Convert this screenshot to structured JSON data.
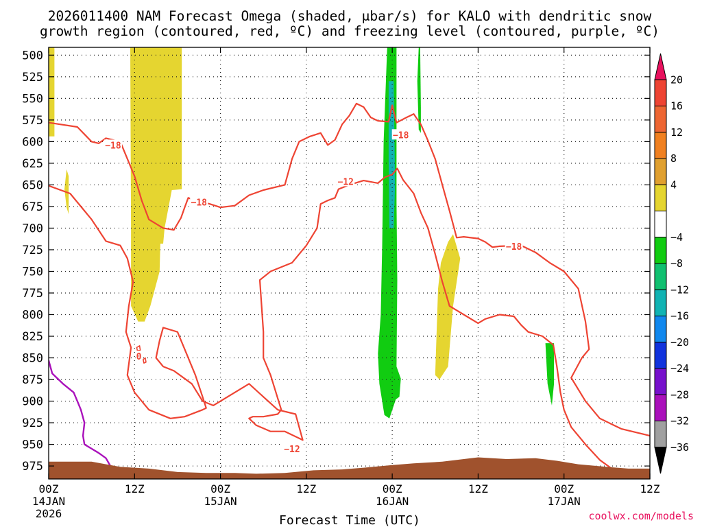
{
  "chart_data": {
    "type": "heatmap",
    "title_line1": "2026011400 NAM Forecast Omega (shaded, μbar/s) for KALO with dendritic snow",
    "title_line2": "growth region (contoured, red, ºC) and freezing level (contoured, purple, ºC)",
    "xlabel": "Forecast Time (UTC)",
    "credit": "coolwx.com/models",
    "xlim_hours": [
      0,
      84
    ],
    "y_levels": [
      500,
      525,
      550,
      575,
      600,
      625,
      650,
      675,
      700,
      725,
      750,
      775,
      800,
      825,
      850,
      875,
      900,
      925,
      950,
      975
    ],
    "ylim_hpa": [
      491,
      990
    ],
    "x_ticks": [
      {
        "hour": 0,
        "label": "00Z",
        "sub1": "14JAN",
        "sub2": "2026"
      },
      {
        "hour": 12,
        "label": "12Z",
        "sub1": "",
        "sub2": ""
      },
      {
        "hour": 24,
        "label": "00Z",
        "sub1": "15JAN",
        "sub2": ""
      },
      {
        "hour": 36,
        "label": "12Z",
        "sub1": "",
        "sub2": ""
      },
      {
        "hour": 48,
        "label": "00Z",
        "sub1": "16JAN",
        "sub2": ""
      },
      {
        "hour": 60,
        "label": "12Z",
        "sub1": "",
        "sub2": ""
      },
      {
        "hour": 72,
        "label": "00Z",
        "sub1": "17JAN",
        "sub2": ""
      },
      {
        "hour": 84,
        "label": "12Z",
        "sub1": "",
        "sub2": ""
      }
    ],
    "colorbar": {
      "labels": [
        "20",
        "16",
        "12",
        "8",
        "4",
        "−4",
        "−8",
        "−12",
        "−16",
        "−20",
        "−24",
        "−28",
        "−32",
        "−36"
      ],
      "bins": [
        {
          "color": "#e8115e",
          "shape": "triangle"
        },
        {
          "color": "#ee4433"
        },
        {
          "color": "#ee6633"
        },
        {
          "color": "#f08020"
        },
        {
          "color": "#e0a030"
        },
        {
          "color": "#e5d530"
        },
        {
          "color": "#ffffff"
        },
        {
          "color": "#11cc11"
        },
        {
          "color": "#11c070"
        },
        {
          "color": "#11b3b3"
        },
        {
          "color": "#1188ee"
        },
        {
          "color": "#1133dd"
        },
        {
          "color": "#7711cc"
        },
        {
          "color": "#aa11bb"
        },
        {
          "color": "#a0a0a0"
        },
        {
          "color": "#000000",
          "shape": "triangle"
        }
      ]
    },
    "contour_labels": [
      {
        "text": "−18",
        "hour": 9,
        "p": 604
      },
      {
        "text": "−18",
        "hour": 21,
        "p": 670
      },
      {
        "text": "−12",
        "hour": 41.5,
        "p": 646
      },
      {
        "text": "−18",
        "hour": 49.2,
        "p": 592
      },
      {
        "text": "−18",
        "hour": 65,
        "p": 721
      },
      {
        "text": "−12",
        "hour": 34,
        "p": 955
      },
      {
        "text": "0",
        "hour": 12.6,
        "p": 848
      }
    ],
    "shaded_regions": [
      {
        "color": "#e5d530",
        "points": [
          [
            0,
            491
          ],
          [
            0.8,
            491
          ],
          [
            0.8,
            594
          ],
          [
            0,
            594
          ]
        ]
      },
      {
        "color": "#e5d530",
        "points": [
          [
            2.5,
            632
          ],
          [
            2.8,
            640
          ],
          [
            2.8,
            684
          ],
          [
            2.5,
            676
          ],
          [
            2.2,
            655
          ]
        ]
      },
      {
        "color": "#e5d530",
        "points": [
          [
            11.4,
            491
          ],
          [
            18.6,
            491
          ],
          [
            18.6,
            655
          ],
          [
            17.2,
            656
          ],
          [
            16.2,
            700
          ],
          [
            16.0,
            718
          ],
          [
            15.6,
            718
          ],
          [
            15.5,
            750
          ],
          [
            14.2,
            790
          ],
          [
            13.4,
            808
          ],
          [
            12.5,
            808
          ],
          [
            11.5,
            790
          ],
          [
            11.5,
            760
          ],
          [
            11.5,
            700
          ]
        ]
      },
      {
        "color": "#e5d530",
        "points": [
          [
            56.5,
            707
          ],
          [
            57.5,
            735
          ],
          [
            56.5,
            790
          ],
          [
            55.8,
            860
          ],
          [
            54.6,
            875
          ],
          [
            54.0,
            870
          ],
          [
            54.2,
            820
          ],
          [
            54.4,
            770
          ],
          [
            54.8,
            740
          ],
          [
            55.8,
            716
          ]
        ]
      },
      {
        "color": "#11cc11",
        "points": [
          [
            47.3,
            491
          ],
          [
            48.6,
            491
          ],
          [
            48.6,
            670
          ],
          [
            48.7,
            760
          ],
          [
            48.6,
            860
          ],
          [
            49.2,
            874
          ],
          [
            49.0,
            895
          ],
          [
            48.5,
            898
          ],
          [
            47.6,
            920
          ],
          [
            46.9,
            916
          ],
          [
            46.2,
            880
          ],
          [
            46.0,
            845
          ],
          [
            46.4,
            800
          ],
          [
            46.6,
            720
          ],
          [
            46.8,
            600
          ]
        ]
      },
      {
        "color": "#11cc11",
        "points": [
          [
            51.7,
            491
          ],
          [
            51.9,
            491
          ],
          [
            52.0,
            560
          ],
          [
            52.0,
            590
          ],
          [
            51.7,
            586
          ],
          [
            51.5,
            530
          ]
        ]
      },
      {
        "color": "#11cc11",
        "points": [
          [
            69.4,
            833
          ],
          [
            70.6,
            833
          ],
          [
            70.6,
            880
          ],
          [
            70.3,
            905
          ],
          [
            69.7,
            880
          ]
        ]
      },
      {
        "color": "#11b3b3",
        "points": [
          [
            47.5,
            530
          ],
          [
            48.2,
            530
          ],
          [
            48.4,
            650
          ],
          [
            48.2,
            700
          ],
          [
            47.6,
            700
          ],
          [
            47.5,
            620
          ]
        ]
      }
    ],
    "contours": [
      {
        "color": "#ee4433",
        "width": 2.2,
        "points": [
          [
            0,
            578
          ],
          [
            4,
            583
          ],
          [
            6,
            600
          ],
          [
            7,
            602
          ],
          [
            8,
            596
          ],
          [
            10,
            600
          ],
          [
            12,
            640
          ],
          [
            13,
            668
          ],
          [
            14,
            690
          ],
          [
            16,
            700
          ],
          [
            17.5,
            702
          ],
          [
            18.5,
            688
          ],
          [
            19,
            676
          ],
          [
            19.5,
            665
          ],
          [
            20.5,
            668
          ],
          [
            22.5,
            672
          ],
          [
            24,
            676
          ],
          [
            26,
            674
          ],
          [
            28,
            662
          ],
          [
            30,
            656
          ],
          [
            33,
            650
          ],
          [
            34,
            620
          ],
          [
            35,
            600
          ],
          [
            36.5,
            594
          ],
          [
            38,
            590
          ],
          [
            39,
            604
          ],
          [
            40,
            598
          ],
          [
            41,
            580
          ],
          [
            42,
            570
          ],
          [
            43,
            556
          ],
          [
            44,
            560
          ],
          [
            45,
            572
          ],
          [
            46,
            576
          ],
          [
            47.5,
            577
          ],
          [
            48,
            558
          ],
          [
            48.6,
            578
          ],
          [
            50,
            572
          ],
          [
            51,
            568
          ],
          [
            52,
            580
          ],
          [
            53,
            599
          ],
          [
            54,
            620
          ],
          [
            55,
            650
          ],
          [
            56,
            680
          ],
          [
            57,
            711
          ],
          [
            58,
            710
          ],
          [
            60,
            712
          ],
          [
            61,
            716
          ],
          [
            62,
            722
          ],
          [
            63,
            721
          ],
          [
            66,
            720
          ],
          [
            68,
            728
          ],
          [
            70,
            740
          ],
          [
            72,
            750
          ],
          [
            74,
            770
          ],
          [
            75,
            808
          ],
          [
            75.5,
            840
          ],
          [
            74.5,
            850
          ],
          [
            73,
            873
          ],
          [
            75,
            900
          ],
          [
            77,
            920
          ],
          [
            80,
            932
          ],
          [
            84,
            940
          ]
        ]
      },
      {
        "color": "#ee4433",
        "width": 2.2,
        "points": [
          [
            0,
            651
          ],
          [
            3,
            660
          ],
          [
            6,
            690
          ],
          [
            8,
            715
          ],
          [
            10,
            720
          ],
          [
            11,
            735
          ],
          [
            11.8,
            762
          ],
          [
            11.2,
            790
          ],
          [
            10.8,
            820
          ],
          [
            11.5,
            838
          ],
          [
            11.0,
            870
          ],
          [
            12,
            890
          ],
          [
            14,
            910
          ],
          [
            17,
            920
          ],
          [
            19,
            918
          ],
          [
            21.5,
            910
          ],
          [
            22,
            908
          ],
          [
            21.5,
            895
          ],
          [
            20.5,
            870
          ],
          [
            19,
            840
          ],
          [
            18,
            820
          ],
          [
            16,
            815
          ],
          [
            15.5,
            830
          ],
          [
            15,
            850
          ],
          [
            16,
            860
          ],
          [
            17.5,
            865
          ],
          [
            20,
            880
          ],
          [
            21.5,
            900
          ],
          [
            23,
            905
          ],
          [
            26,
            890
          ],
          [
            28,
            880
          ],
          [
            30,
            895
          ],
          [
            32,
            910
          ],
          [
            34.5,
            915
          ],
          [
            35,
            930
          ],
          [
            35.5,
            945
          ],
          [
            33,
            935
          ],
          [
            31,
            935
          ],
          [
            29,
            928
          ],
          [
            28,
            920
          ],
          [
            28.5,
            918
          ],
          [
            30,
            918
          ],
          [
            32,
            915
          ],
          [
            32.5,
            910
          ],
          [
            31,
            870
          ],
          [
            30,
            850
          ],
          [
            30,
            820
          ],
          [
            29.5,
            760
          ],
          [
            31,
            750
          ],
          [
            34,
            740
          ],
          [
            36,
            720
          ],
          [
            37.5,
            700
          ],
          [
            38,
            672
          ],
          [
            39,
            668
          ],
          [
            40,
            665
          ],
          [
            40.5,
            655
          ],
          [
            42,
            650
          ],
          [
            44,
            645
          ],
          [
            46,
            648
          ],
          [
            47,
            641
          ],
          [
            48,
            638
          ],
          [
            48.7,
            631
          ],
          [
            49.5,
            644
          ],
          [
            51,
            660
          ],
          [
            52,
            682
          ],
          [
            53,
            700
          ],
          [
            54,
            730
          ],
          [
            55,
            762
          ],
          [
            56,
            790
          ],
          [
            58,
            800
          ],
          [
            60,
            810
          ],
          [
            61,
            805
          ],
          [
            63,
            800
          ],
          [
            65,
            802
          ],
          [
            66,
            812
          ],
          [
            67,
            820
          ],
          [
            69,
            825
          ],
          [
            70.5,
            835
          ],
          [
            71,
            860
          ],
          [
            71.5,
            890
          ],
          [
            72,
            910
          ],
          [
            73,
            930
          ],
          [
            75,
            950
          ],
          [
            77,
            968
          ],
          [
            79,
            980
          ]
        ]
      },
      {
        "color": "#ee4433",
        "width": 1.6,
        "points": [
          [
            12.3,
            838
          ],
          [
            12.7,
            836
          ],
          [
            12.8,
            841
          ],
          [
            12.4,
            842
          ],
          [
            12.3,
            838
          ]
        ]
      },
      {
        "color": "#ee4433",
        "width": 1.6,
        "points": [
          [
            13.2,
            852
          ],
          [
            13.5,
            850
          ],
          [
            13.6,
            855
          ],
          [
            13.3,
            856
          ],
          [
            13.2,
            852
          ]
        ]
      },
      {
        "color": "#aa11bb",
        "width": 2.4,
        "points": [
          [
            0,
            853
          ],
          [
            0.5,
            868
          ],
          [
            2,
            880
          ],
          [
            3.5,
            890
          ],
          [
            4,
            900
          ],
          [
            4.5,
            910
          ],
          [
            5,
            925
          ],
          [
            4.8,
            940
          ],
          [
            5,
            950
          ],
          [
            6,
            955
          ],
          [
            7,
            960
          ],
          [
            8,
            966
          ],
          [
            8.7,
            976
          ]
        ]
      },
      {
        "color": "#aa11bb",
        "width": 2.4,
        "points": [
          [
            65.5,
            975
          ],
          [
            66.2,
            970
          ],
          [
            67.2,
            970
          ],
          [
            68,
            974
          ]
        ]
      }
    ],
    "terrain": {
      "color": "#a0522d",
      "top": [
        [
          0,
          970
        ],
        [
          6,
          970
        ],
        [
          10,
          976
        ],
        [
          14,
          978
        ],
        [
          18,
          982
        ],
        [
          22,
          983
        ],
        [
          26,
          983
        ],
        [
          29,
          984
        ],
        [
          33,
          983
        ],
        [
          37,
          980
        ],
        [
          41,
          979
        ],
        [
          44,
          977
        ],
        [
          48,
          974
        ],
        [
          51,
          972
        ],
        [
          55,
          970
        ],
        [
          60,
          965
        ],
        [
          64,
          967
        ],
        [
          68,
          966
        ],
        [
          71,
          969
        ],
        [
          74,
          973
        ],
        [
          78,
          976
        ],
        [
          81,
          978
        ],
        [
          84,
          978
        ]
      ]
    }
  }
}
